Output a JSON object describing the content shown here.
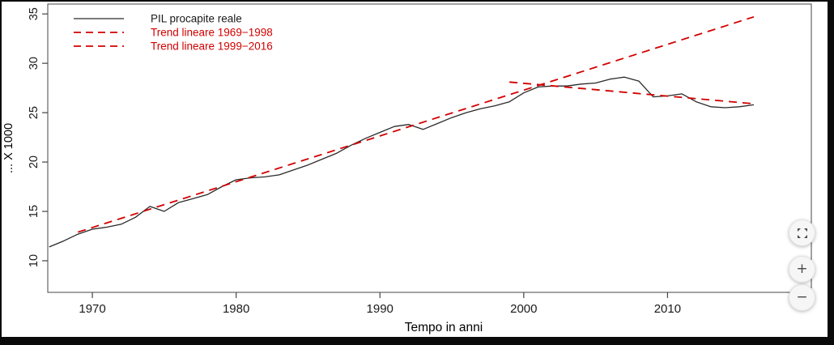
{
  "frame": {
    "outer_background": "#0a0a0a",
    "page_background": "#ffffff",
    "axis_color": "#444444",
    "text_color": "#1a1a1a",
    "accent_red": "#d20000",
    "series_black": "#2a2a2a"
  },
  "chart_data": {
    "type": "line",
    "title": "",
    "xlabel": "Tempo in anni",
    "ylabel": "... X 1000",
    "x_ticks": [
      1970,
      1980,
      1990,
      2000,
      2010
    ],
    "y_ticks": [
      10,
      15,
      20,
      25,
      30,
      35
    ],
    "xlim": [
      1966.9,
      2020
    ],
    "ylim": [
      6.8,
      36.0
    ],
    "grid": false,
    "legend_position": "top-left",
    "series": [
      {
        "name": "PIL procapite reale",
        "color": "#2a2a2a",
        "style": "solid",
        "x": [
          1967,
          1968,
          1969,
          1970,
          1971,
          1972,
          1973,
          1974,
          1975,
          1976,
          1977,
          1978,
          1979,
          1980,
          1981,
          1982,
          1983,
          1984,
          1985,
          1986,
          1987,
          1988,
          1989,
          1990,
          1991,
          1992,
          1993,
          1994,
          1995,
          1996,
          1997,
          1998,
          1999,
          2000,
          2001,
          2002,
          2003,
          2004,
          2005,
          2006,
          2007,
          2008,
          2009,
          2010,
          2011,
          2012,
          2013,
          2014,
          2015,
          2016
        ],
        "values": [
          11.4,
          12.0,
          12.7,
          13.2,
          13.4,
          13.7,
          14.4,
          15.5,
          15.0,
          15.9,
          16.3,
          16.7,
          17.5,
          18.2,
          18.4,
          18.5,
          18.7,
          19.2,
          19.7,
          20.3,
          20.9,
          21.7,
          22.4,
          23.0,
          23.6,
          23.8,
          23.3,
          23.9,
          24.5,
          25.0,
          25.4,
          25.7,
          26.1,
          27.0,
          27.6,
          27.7,
          27.7,
          27.9,
          28.0,
          28.4,
          28.6,
          28.2,
          26.6,
          26.7,
          26.9,
          26.1,
          25.6,
          25.5,
          25.6,
          25.8
        ]
      },
      {
        "name": "Trend lineare 1969−1998",
        "color": "#d20000",
        "style": "dashed",
        "x": [
          1969,
          2016
        ],
        "values": [
          12.9,
          34.7
        ]
      },
      {
        "name": "Trend lineare 1999−2016",
        "color": "#d20000",
        "style": "dashed",
        "x": [
          1999,
          2016
        ],
        "values": [
          28.1,
          25.9
        ]
      }
    ]
  },
  "controls": {
    "zoom_in_symbol": "+",
    "zoom_out_symbol": "−"
  }
}
